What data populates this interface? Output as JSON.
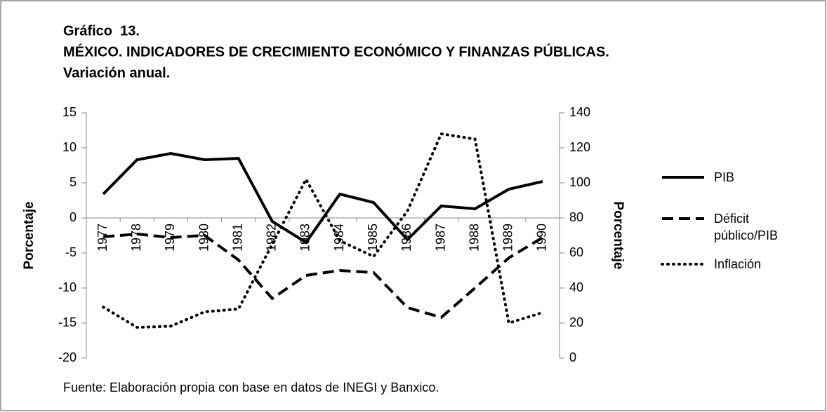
{
  "chart_data": {
    "type": "line",
    "title": [
      "Gráfico  13.",
      "MÉXICO. INDICADORES DE CRECIMIENTO ECONÓMICO Y FINANZAS PÚBLICAS.",
      "Variación anual."
    ],
    "y_label": "Porcentaje",
    "y2_label": "Porcentaje",
    "source": "Fuente: Elaboración propia con base en datos de INEGI y Banxico.",
    "categories": [
      "1977",
      "1978",
      "1979",
      "1980",
      "1981",
      "1982",
      "1983",
      "1984",
      "1985",
      "1986",
      "1987",
      "1988",
      "1989",
      "1990"
    ],
    "series": [
      {
        "name": "PIB",
        "color": "#000000",
        "style": "solid",
        "values": [
          3.4,
          8.3,
          9.2,
          8.3,
          8.5,
          -0.5,
          -3.5,
          3.4,
          2.2,
          -3.1,
          1.7,
          1.3,
          4.1,
          5.2
        ]
      },
      {
        "name": "Déficit público/PIB",
        "color": "#000000",
        "style": "dashed",
        "values": [
          -2.7,
          -2.3,
          -2.8,
          -2.5,
          -6.0,
          -11.5,
          -8.2,
          -7.5,
          -7.8,
          -12.8,
          -14.2,
          -10.0,
          -5.7,
          -2.8
        ]
      },
      {
        "name": "Inflación",
        "color": "#000000",
        "style": "dotted",
        "axis": "y2",
        "values": [
          29.1,
          17.5,
          18.2,
          26.4,
          28.0,
          65,
          102,
          67,
          58,
          84,
          128,
          125,
          20,
          26
        ]
      }
    ],
    "ylim": [
      -20,
      15
    ],
    "yticks": [
      -20,
      -15,
      -10,
      -5,
      0,
      5,
      10,
      15
    ],
    "y2lim": [
      0,
      140
    ],
    "y2ticks": [
      0,
      20,
      40,
      60,
      80,
      100,
      120,
      140
    ],
    "legend": "right"
  }
}
